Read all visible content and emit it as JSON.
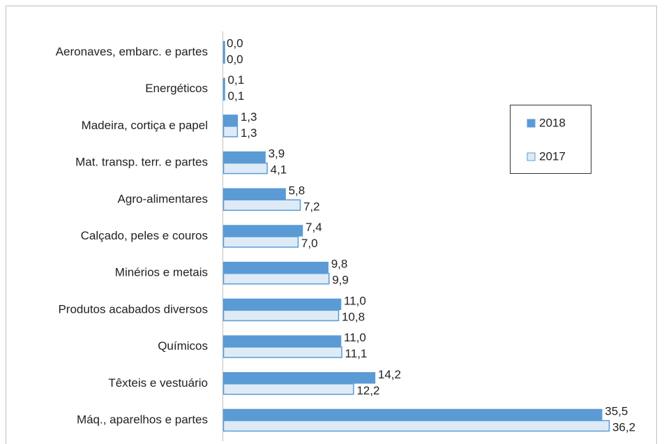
{
  "chart_data": {
    "type": "bar",
    "orientation": "horizontal",
    "categories": [
      "Aeronaves, embarc. e partes",
      "Energéticos",
      "Madeira, cortiça e papel",
      "Mat. transp. terr. e partes",
      "Agro-alimentares",
      "Calçado, peles e couros",
      "Minérios e metais",
      "Produtos acabados diversos",
      "Químicos",
      "Têxteis e vestuário",
      "Máq., aparelhos e partes"
    ],
    "series": [
      {
        "name": "2018",
        "color": "#5b9bd5",
        "values": [
          0.0,
          0.1,
          1.3,
          3.9,
          5.8,
          7.4,
          9.8,
          11.0,
          11.0,
          14.2,
          35.5
        ],
        "value_labels": [
          "0,0",
          "0,1",
          "1,3",
          "3,9",
          "5,8",
          "7,4",
          "9,8",
          "11,0",
          "11,0",
          "14,2",
          "35,5"
        ]
      },
      {
        "name": "2017",
        "color": "#deebf7",
        "values": [
          0.0,
          0.1,
          1.3,
          4.1,
          7.2,
          7.0,
          9.9,
          10.8,
          11.1,
          12.2,
          36.2
        ],
        "value_labels": [
          "0,0",
          "0,1",
          "1,3",
          "4,1",
          "7,2",
          "7,0",
          "9,9",
          "10,8",
          "11,1",
          "12,2",
          "36,2"
        ]
      }
    ],
    "xlim": [
      0,
      40
    ],
    "legend": "right"
  }
}
